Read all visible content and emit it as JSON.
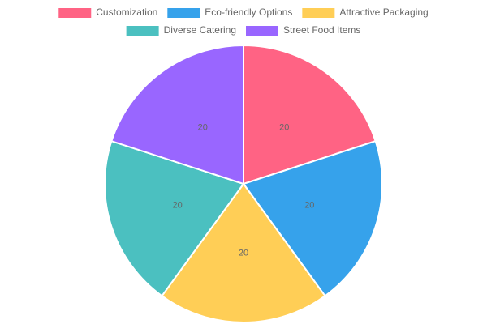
{
  "chart_data": {
    "type": "pie",
    "title": "",
    "categories": [
      "Customization",
      "Eco-friendly Options",
      "Attractive Packaging",
      "Diverse Catering",
      "Street Food Items"
    ],
    "values": [
      20,
      20,
      20,
      20,
      20
    ],
    "data_labels": [
      "20",
      "20",
      "20",
      "20",
      "20"
    ],
    "colors": [
      "#ff6384",
      "#36a2eb",
      "#ffce56",
      "#4bc0c0",
      "#9966ff"
    ],
    "legend_position": "top",
    "start_angle": "12 o'clock",
    "direction": "clockwise"
  }
}
